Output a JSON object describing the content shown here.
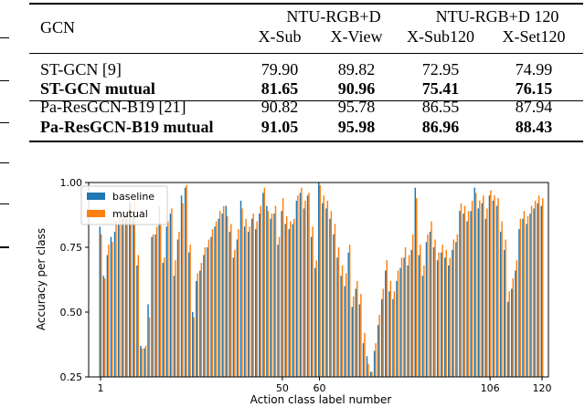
{
  "table": {
    "header": {
      "first_col": "GCN",
      "groups": [
        {
          "label": "NTU-RGB+D",
          "cols": [
            "X-Sub",
            "X-View"
          ]
        },
        {
          "label": "NTU-RGB+D 120",
          "cols": [
            "X-Sub120",
            "X-Set120"
          ]
        }
      ]
    },
    "rows": [
      {
        "name": "ST-GCN [9]",
        "values": [
          "79.90",
          "89.82",
          "72.95",
          "74.99"
        ],
        "bold": false
      },
      {
        "name": "ST-GCN mutual",
        "values": [
          "81.65",
          "90.96",
          "75.41",
          "76.15"
        ],
        "bold": true
      },
      {
        "name": "Pa-ResGCN-B19 [21]",
        "values": [
          "90.82",
          "95.78",
          "86.55",
          "87.94"
        ],
        "bold": false
      },
      {
        "name": "Pa-ResGCN-B19 mutual",
        "values": [
          "91.05",
          "95.98",
          "86.96",
          "88.43"
        ],
        "bold": true
      }
    ]
  },
  "chart_data": {
    "type": "bar",
    "xlabel": "Action class label number",
    "ylabel": "Accuracy per class",
    "ylim": [
      0.25,
      1.0
    ],
    "yticks": [
      "0.25",
      "0.50",
      "0.75",
      "1.00"
    ],
    "xticks": [
      1,
      50,
      60,
      106,
      120
    ],
    "legend_position": "top-left",
    "colors": {
      "baseline": "#1f77b4",
      "mutual": "#ff7f0e"
    },
    "categories": [
      1,
      2,
      3,
      4,
      5,
      6,
      7,
      8,
      9,
      10,
      11,
      12,
      13,
      14,
      15,
      16,
      17,
      18,
      19,
      20,
      21,
      22,
      23,
      24,
      25,
      26,
      27,
      28,
      29,
      30,
      31,
      32,
      33,
      34,
      35,
      36,
      37,
      38,
      39,
      40,
      41,
      42,
      43,
      44,
      45,
      46,
      47,
      48,
      49,
      50,
      51,
      52,
      53,
      54,
      55,
      56,
      57,
      58,
      59,
      60,
      61,
      62,
      63,
      64,
      65,
      66,
      67,
      68,
      69,
      70,
      71,
      72,
      73,
      74,
      75,
      76,
      77,
      78,
      79,
      80,
      81,
      82,
      83,
      84,
      85,
      86,
      87,
      88,
      89,
      90,
      91,
      92,
      93,
      94,
      95,
      96,
      97,
      98,
      99,
      100,
      101,
      102,
      103,
      104,
      105,
      106,
      107,
      108,
      109,
      110,
      111,
      112,
      113,
      114,
      115,
      116,
      117,
      118,
      119,
      120
    ],
    "series": [
      {
        "name": "baseline",
        "values": [
          0.83,
          0.64,
          0.72,
          0.79,
          0.81,
          0.84,
          0.86,
          0.88,
          0.93,
          0.89,
          0.68,
          0.37,
          0.36,
          0.53,
          0.79,
          0.8,
          0.91,
          0.69,
          0.83,
          0.88,
          0.64,
          0.78,
          0.95,
          0.98,
          0.73,
          0.5,
          0.62,
          0.66,
          0.72,
          0.75,
          0.79,
          0.83,
          0.86,
          0.88,
          0.91,
          0.81,
          0.71,
          0.78,
          0.93,
          0.83,
          0.81,
          0.86,
          0.82,
          0.88,
          0.96,
          0.91,
          0.86,
          0.88,
          0.76,
          0.89,
          0.84,
          0.82,
          0.84,
          0.93,
          0.96,
          0.9,
          0.95,
          0.79,
          0.67,
          1.0,
          0.92,
          0.9,
          0.86,
          0.8,
          0.71,
          0.64,
          0.6,
          0.73,
          0.52,
          0.59,
          0.53,
          0.38,
          0.33,
          0.27,
          0.35,
          0.45,
          0.55,
          0.66,
          0.58,
          0.55,
          0.62,
          0.67,
          0.71,
          0.68,
          0.74,
          0.98,
          0.72,
          0.64,
          0.77,
          0.81,
          0.75,
          0.7,
          0.73,
          0.71,
          0.68,
          0.74,
          0.77,
          0.89,
          0.88,
          0.85,
          0.89,
          0.98,
          0.9,
          0.92,
          0.86,
          0.95,
          0.93,
          0.91,
          0.81,
          0.74,
          0.54,
          0.59,
          0.66,
          0.82,
          0.86,
          0.84,
          0.88,
          0.9,
          0.92,
          0.91
        ],
        "note": ""
      },
      {
        "name": "mutual",
        "values": [
          0.8,
          0.63,
          0.76,
          0.77,
          0.85,
          0.87,
          0.89,
          0.86,
          0.92,
          0.93,
          0.72,
          0.36,
          0.37,
          0.48,
          0.8,
          0.83,
          0.85,
          0.71,
          0.85,
          0.9,
          0.7,
          0.81,
          0.92,
          0.99,
          0.76,
          0.48,
          0.65,
          0.69,
          0.75,
          0.78,
          0.82,
          0.85,
          0.89,
          0.91,
          0.87,
          0.84,
          0.74,
          0.82,
          0.9,
          0.86,
          0.83,
          0.88,
          0.85,
          0.91,
          0.98,
          0.89,
          0.88,
          0.91,
          0.79,
          0.94,
          0.87,
          0.85,
          0.86,
          0.95,
          0.98,
          0.93,
          0.96,
          0.83,
          0.7,
          0.99,
          0.95,
          0.93,
          0.89,
          0.84,
          0.75,
          0.68,
          0.65,
          0.76,
          0.56,
          0.62,
          0.57,
          0.42,
          0.3,
          0.27,
          0.38,
          0.49,
          0.59,
          0.7,
          0.62,
          0.58,
          0.66,
          0.71,
          0.75,
          0.72,
          0.8,
          0.94,
          0.76,
          0.68,
          0.8,
          0.85,
          0.78,
          0.73,
          0.76,
          0.74,
          0.71,
          0.78,
          0.8,
          0.92,
          0.91,
          0.89,
          0.93,
          0.96,
          0.93,
          0.95,
          0.9,
          0.97,
          0.95,
          0.94,
          0.85,
          0.78,
          0.58,
          0.63,
          0.7,
          0.86,
          0.89,
          0.87,
          0.91,
          0.93,
          0.95,
          0.94
        ]
      }
    ]
  }
}
